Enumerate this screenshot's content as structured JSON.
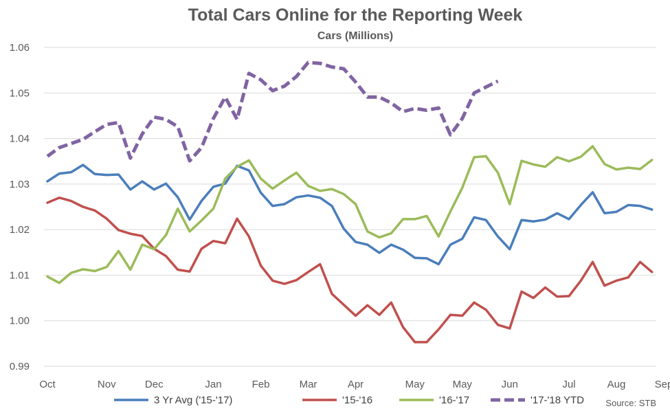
{
  "chart_data": {
    "type": "line",
    "title": "Total Cars Online for the Reporting Week",
    "subtitle": "Cars (Millions)",
    "source": "Source:  STB",
    "xlabel": "",
    "ylabel": "",
    "ylim": [
      0.99,
      1.06
    ],
    "yticks": [
      0.99,
      1.0,
      1.01,
      1.02,
      1.03,
      1.04,
      1.05,
      1.06
    ],
    "ytick_labels": [
      "0.99",
      "1.00",
      "1.01",
      "1.02",
      "1.03",
      "1.04",
      "1.05",
      "1.06"
    ],
    "grid": true,
    "legend_position": "bottom",
    "num_weeks": 52,
    "month_ticks": [
      {
        "label": "Oct",
        "week": 1
      },
      {
        "label": "Nov",
        "week": 6
      },
      {
        "label": "Dec",
        "week": 10
      },
      {
        "label": "Jan",
        "week": 15
      },
      {
        "label": "Feb",
        "week": 19
      },
      {
        "label": "Mar",
        "week": 23
      },
      {
        "label": "Apr",
        "week": 27
      },
      {
        "label": "May",
        "week": 32
      },
      {
        "label": "May",
        "week": 36
      },
      {
        "label": "Jun",
        "week": 40
      },
      {
        "label": "Jul",
        "week": 45
      },
      {
        "label": "Aug",
        "week": 49
      },
      {
        "label": "Sep",
        "week": 53
      }
    ],
    "series": [
      {
        "name": "3 Yr Avg ('15-'17)",
        "color": "#4a7ebb",
        "dashed": false,
        "values": [
          1.0306,
          1.0323,
          1.0326,
          1.0342,
          1.0322,
          1.032,
          1.0321,
          1.0288,
          1.0306,
          1.0288,
          1.0301,
          1.0271,
          1.0222,
          1.0263,
          1.0294,
          1.0301,
          1.034,
          1.033,
          1.0281,
          1.0252,
          1.0256,
          1.0271,
          1.0275,
          1.027,
          1.0252,
          1.0202,
          1.0173,
          1.0167,
          1.0149,
          1.0167,
          1.0156,
          1.0138,
          1.0137,
          1.0124,
          1.0167,
          1.018,
          1.0227,
          1.0221,
          1.0185,
          1.0157,
          1.0221,
          1.0218,
          1.0222,
          1.0236,
          1.0223,
          1.0254,
          1.0282,
          1.0236,
          1.0239,
          1.0254,
          1.0252,
          1.0244
        ]
      },
      {
        "name": "'15-'16",
        "color": "#c0504d",
        "dashed": false,
        "values": [
          1.0259,
          1.027,
          1.0263,
          1.025,
          1.0242,
          1.0224,
          1.0199,
          1.0191,
          1.0186,
          1.0158,
          1.0142,
          1.0112,
          1.0108,
          1.0158,
          1.0175,
          1.017,
          1.0224,
          1.0185,
          1.0121,
          1.0088,
          1.0081,
          1.0089,
          1.0107,
          1.0124,
          1.0059,
          1.0035,
          1.0011,
          1.0034,
          1.0013,
          1.004,
          0.9986,
          0.9953,
          0.9953,
          0.9981,
          1.0013,
          1.0011,
          1.004,
          1.0024,
          0.9991,
          0.9983,
          1.0064,
          1.005,
          1.0073,
          1.0053,
          1.0054,
          1.0088,
          1.0129,
          1.0077,
          1.0088,
          1.0095,
          1.0129,
          1.0107
        ]
      },
      {
        "name": "'16-'17",
        "color": "#9bbb59",
        "dashed": false,
        "values": [
          1.0097,
          1.0083,
          1.0105,
          1.0113,
          1.0109,
          1.0118,
          1.0153,
          1.0112,
          1.0167,
          1.0157,
          1.0188,
          1.0246,
          1.0196,
          1.022,
          1.0246,
          1.0312,
          1.0338,
          1.0352,
          1.0312,
          1.029,
          1.0308,
          1.0325,
          1.0296,
          1.0285,
          1.0289,
          1.0278,
          1.0256,
          1.0196,
          1.0183,
          1.0192,
          1.0223,
          1.0223,
          1.023,
          1.0185,
          1.024,
          1.0292,
          1.0359,
          1.0361,
          1.0325,
          1.0256,
          1.0351,
          1.0343,
          1.0338,
          1.0359,
          1.035,
          1.036,
          1.0383,
          1.0344,
          1.0332,
          1.0336,
          1.0333,
          1.0353
        ]
      },
      {
        "name": "'17-'18 YTD",
        "color": "#8064a2",
        "dashed": true,
        "values": [
          1.0361,
          1.038,
          1.0389,
          1.0398,
          1.0415,
          1.0431,
          1.0435,
          1.0357,
          1.041,
          1.0447,
          1.0442,
          1.0426,
          1.0351,
          1.038,
          1.0444,
          1.0491,
          1.0442,
          1.0543,
          1.0529,
          1.0505,
          1.0515,
          1.0536,
          1.0567,
          1.0565,
          1.0557,
          1.0553,
          1.0524,
          1.0491,
          1.0491,
          1.0478,
          1.0459,
          1.0466,
          1.0462,
          1.0467,
          1.0408,
          1.0444,
          1.05,
          1.0513,
          1.0526
        ]
      }
    ]
  }
}
